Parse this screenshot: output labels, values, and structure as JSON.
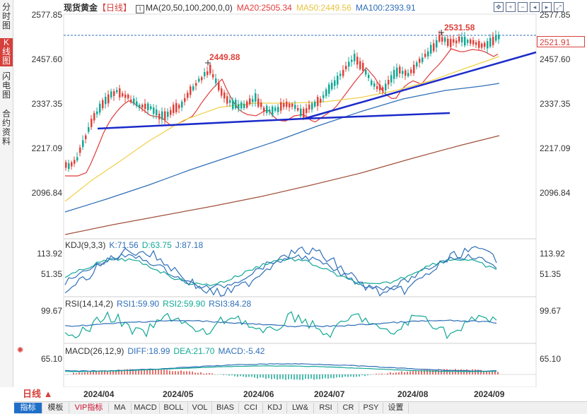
{
  "sidebar": {
    "tabs": [
      {
        "label": "分时图",
        "active": false
      },
      {
        "label": "K线图",
        "active": true
      },
      {
        "label": "闪电图",
        "active": false
      },
      {
        "label": "合约资料",
        "active": false
      }
    ]
  },
  "header": {
    "instrument": "现货黄金",
    "period": "【日线】",
    "ma_label": "MA(20,50,100,200,0,0)",
    "ma20": "MA20:2505.34",
    "ma50": "MA50:2449.56",
    "ma100": "MA100:2393.91"
  },
  "colors": {
    "up": "#e0403a",
    "down": "#12a896",
    "ma20": "#e03c3c",
    "ma50": "#f0d04a",
    "ma100": "#2f6fb8",
    "ma200": "#a0523c",
    "trendline": "#1b2bc9",
    "accent": "#d6403c",
    "active_tab": "#1f6fc9"
  },
  "price_axis": {
    "left_labels": [
      "2577.85",
      "2457.60",
      "2337.35",
      "2217.09",
      "2096.84"
    ],
    "right_labels": [
      "2577.85",
      "2457.60",
      "2337.35",
      "2217.09",
      "2096.84"
    ],
    "last_price": "2521.91"
  },
  "annotations": {
    "high_1": "2449.88",
    "high_2": "2531.58"
  },
  "kdj": {
    "title": "KDJ(9,3,3)",
    "k": "K:71.56",
    "d": "D:63.75",
    "j": "J:87.18",
    "axis": [
      "113.92",
      "51.35"
    ]
  },
  "rsi": {
    "title": "RSI(14,14,2)",
    "rsi1": "RSI1:59.90",
    "rsi2": "RSI2:59.90",
    "rsi3": "RSI3:84.28",
    "axis": [
      "99.67"
    ]
  },
  "macd": {
    "title": "MACD(26,12,9)",
    "diff": "DIFF:18.99",
    "dea": "DEA:21.70",
    "macd": "MACD:-5.42",
    "axis": [
      "65.10"
    ]
  },
  "dates": [
    "2024/04",
    "2024/05",
    "2024/06",
    "2024/07",
    "2024/08",
    "2024/09"
  ],
  "period_selector": "日线 ▲",
  "toolbar": [
    "指标",
    "模板",
    "VIP指标",
    "MA",
    "MACD",
    "BOLL",
    "VOL",
    "BIAS",
    "CCI",
    "KDJ",
    "LW&",
    "RSI",
    "CR",
    "PSY",
    "设置"
  ]
}
